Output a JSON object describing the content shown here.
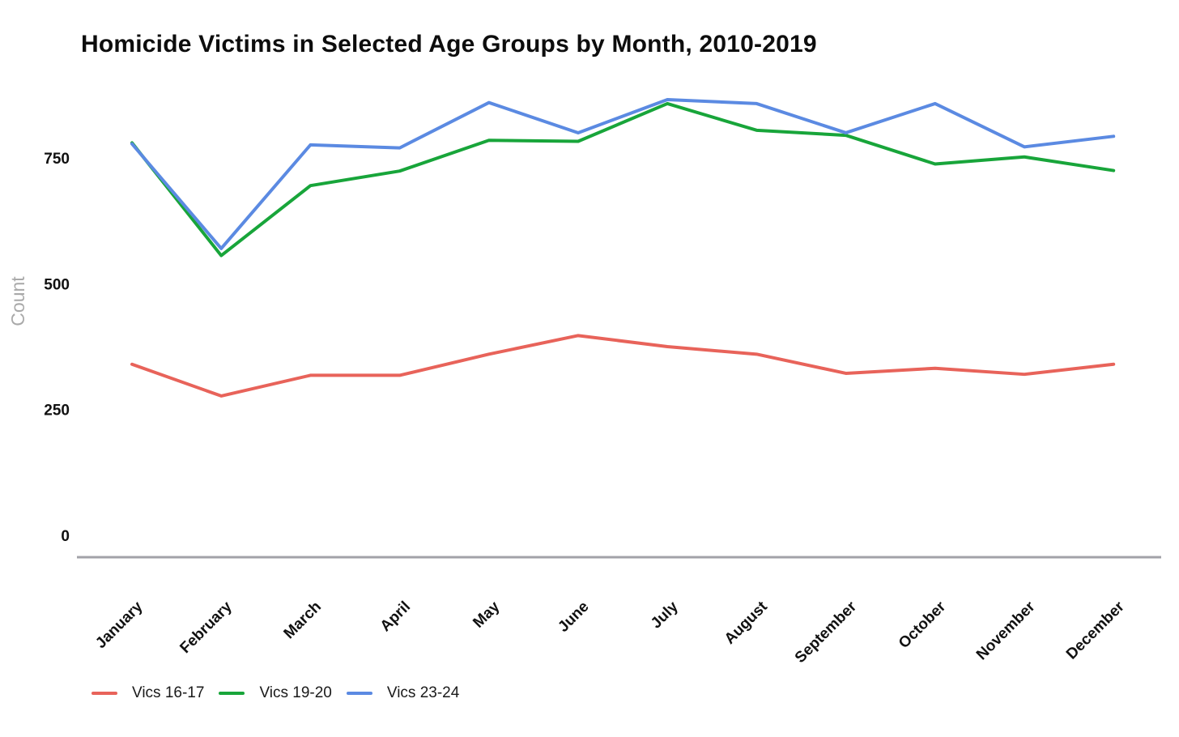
{
  "page": {
    "background": "#ffffff"
  },
  "chart_data": {
    "type": "line",
    "title": "Homicide Victims in Selected Age Groups by Month, 2010-2019",
    "xlabel": "",
    "ylabel": "Count",
    "yticks": [
      0,
      250,
      500,
      750
    ],
    "ylim": [
      0,
      900
    ],
    "grid": false,
    "legend_position": "bottom-left",
    "axis_color": "#a2a2a8",
    "tick_label_color": "#111111",
    "ylabel_color": "#a9a9a9",
    "x": [
      "January",
      "February",
      "March",
      "April",
      "May",
      "June",
      "July",
      "August",
      "September",
      "October",
      "November",
      "December"
    ],
    "series": [
      {
        "name": "Vics 16-17",
        "color": "#e8635a",
        "values": [
          340,
          277,
          318,
          318,
          360,
          397,
          375,
          360,
          322,
          332,
          320,
          340
        ]
      },
      {
        "name": "Vics 19-20",
        "color": "#18a53a",
        "values": [
          780,
          556,
          695,
          724,
          785,
          783,
          858,
          805,
          795,
          738,
          752,
          725
        ]
      },
      {
        "name": "Vics 23-24",
        "color": "#5b8ae2",
        "values": [
          778,
          570,
          776,
          770,
          860,
          800,
          866,
          858,
          800,
          858,
          772,
          793
        ]
      }
    ]
  }
}
